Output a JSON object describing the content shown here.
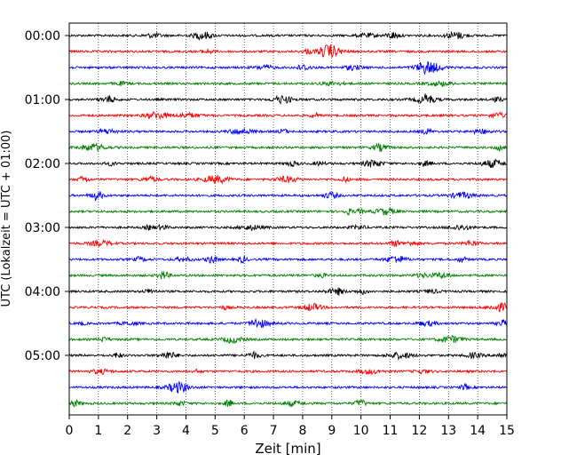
{
  "chart_data": {
    "type": "line",
    "chart_kind": "helicorder",
    "xlabel": "Zeit  [min]",
    "ylabel": "UTC (Lokalzeit = UTC + 01:00)",
    "xlim": [
      0,
      15
    ],
    "x_ticks": [
      0,
      1,
      2,
      3,
      4,
      5,
      6,
      7,
      8,
      9,
      10,
      11,
      12,
      13,
      14,
      15
    ],
    "x_grid": "dotted vertical lines at each minute",
    "y_direction": "time increases downward",
    "y_tick_labels": [
      "00:00",
      "01:00",
      "02:00",
      "03:00",
      "04:00",
      "05:00"
    ],
    "trace_interval_minutes": 15,
    "trace_count": 24,
    "trace_colors": [
      "#000000",
      "#ff0000",
      "#0000ff",
      "#008000"
    ],
    "trace_start_times": [
      "00:00",
      "00:15",
      "00:30",
      "00:45",
      "01:00",
      "01:15",
      "01:30",
      "01:45",
      "02:00",
      "02:15",
      "02:30",
      "02:45",
      "03:00",
      "03:15",
      "03:30",
      "03:45",
      "04:00",
      "04:15",
      "04:30",
      "04:45",
      "05:00",
      "05:15",
      "05:30",
      "05:45"
    ],
    "signal": "low-amplitude background noise on every trace, no distinct events"
  }
}
